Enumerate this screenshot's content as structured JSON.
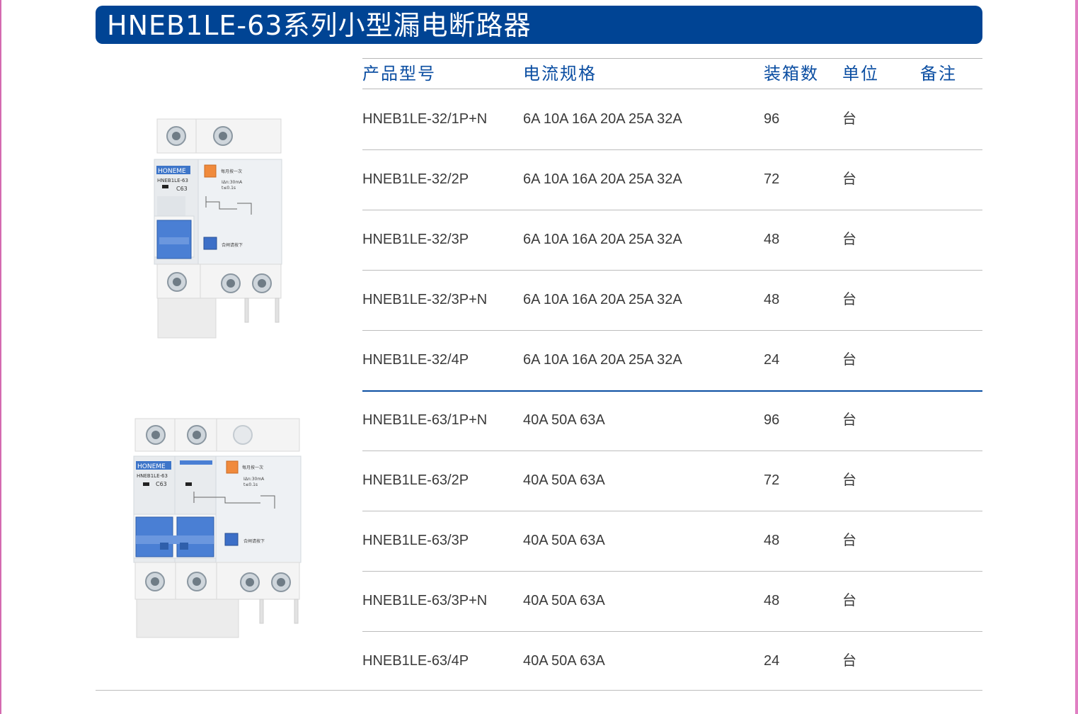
{
  "title": "HNEB1LE-63系列小型漏电断路器",
  "columns": {
    "model": "产品型号",
    "spec": "电流规格",
    "qty": "装箱数",
    "unit": "单位",
    "note": "备注"
  },
  "rows": [
    {
      "model": "HNEB1LE-32/1P+N",
      "spec": "6A 10A 16A 20A 25A 32A",
      "qty": "96",
      "unit": "台",
      "note": ""
    },
    {
      "model": "HNEB1LE-32/2P",
      "spec": "6A 10A 16A 20A 25A 32A",
      "qty": "72",
      "unit": "台",
      "note": ""
    },
    {
      "model": "HNEB1LE-32/3P",
      "spec": "6A 10A 16A 20A 25A 32A",
      "qty": "48",
      "unit": "台",
      "note": ""
    },
    {
      "model": "HNEB1LE-32/3P+N",
      "spec": "6A 10A 16A 20A 25A 32A",
      "qty": "48",
      "unit": "台",
      "note": ""
    },
    {
      "model": "HNEB1LE-32/4P",
      "spec": "6A 10A 16A 20A 25A 32A",
      "qty": "24",
      "unit": "台",
      "note": ""
    },
    {
      "model": "HNEB1LE-63/1P+N",
      "spec": "40A 50A 63A",
      "qty": "96",
      "unit": "台",
      "note": ""
    },
    {
      "model": "HNEB1LE-63/2P",
      "spec": "40A 50A 63A",
      "qty": "72",
      "unit": "台",
      "note": ""
    },
    {
      "model": "HNEB1LE-63/3P",
      "spec": "40A 50A 63A",
      "qty": "48",
      "unit": "台",
      "note": ""
    },
    {
      "model": "HNEB1LE-63/3P+N",
      "spec": "40A 50A 63A",
      "qty": "48",
      "unit": "台",
      "note": ""
    },
    {
      "model": "HNEB1LE-63/4P",
      "spec": "40A 50A 63A",
      "qty": "24",
      "unit": "台",
      "note": ""
    }
  ],
  "products": [
    {
      "brand": "HONEME",
      "model": "HNEB1LE-63",
      "rating": "C63",
      "test_label": "每月按一次",
      "leak": "IΔn:30mA",
      "time": "t≤0.1s",
      "reset": "合闸请按下"
    },
    {
      "brand": "HONEME",
      "model": "HNEB1LE-63",
      "rating": "C63",
      "test_label": "每月按一次",
      "leak": "IΔn:30mA",
      "time": "t≤0.1s",
      "reset": "合闸请按下"
    }
  ],
  "colors": {
    "title_bg": "#004494",
    "header_text": "#0b4ea2",
    "toggle": "#4a7fd4",
    "test_button": "#f08a3c"
  }
}
